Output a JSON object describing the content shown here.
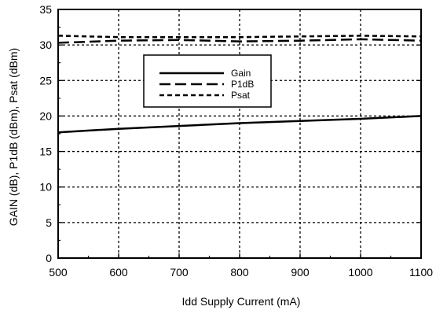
{
  "chart_data": {
    "type": "line",
    "title": "",
    "xlabel": "Idd Supply Current (mA)",
    "ylabel": "GAIN (dB), P1dB (dBm), Psat (dBm)",
    "xlim": [
      500,
      1100
    ],
    "ylim": [
      0,
      35
    ],
    "xticks": [
      500,
      600,
      700,
      800,
      900,
      1000,
      1100
    ],
    "yticks": [
      0,
      5,
      10,
      15,
      20,
      25,
      30,
      35
    ],
    "grid": true,
    "legend_position": "upper-center",
    "series": [
      {
        "name": "Gain",
        "style": "solid",
        "x": [
          500,
          600,
          700,
          800,
          900,
          1000,
          1100
        ],
        "y": [
          17.7,
          18.2,
          18.6,
          19.0,
          19.3,
          19.6,
          20.0
        ]
      },
      {
        "name": "P1dB",
        "style": "long-dash",
        "x": [
          500,
          600,
          700,
          800,
          900,
          1000,
          1100
        ],
        "y": [
          30.3,
          30.6,
          30.7,
          30.5,
          30.6,
          30.8,
          30.6
        ]
      },
      {
        "name": "Psat",
        "style": "short-dash",
        "x": [
          500,
          600,
          700,
          800,
          900,
          1000,
          1100
        ],
        "y": [
          31.3,
          31.1,
          31.1,
          31.1,
          31.2,
          31.3,
          31.2
        ]
      }
    ]
  }
}
